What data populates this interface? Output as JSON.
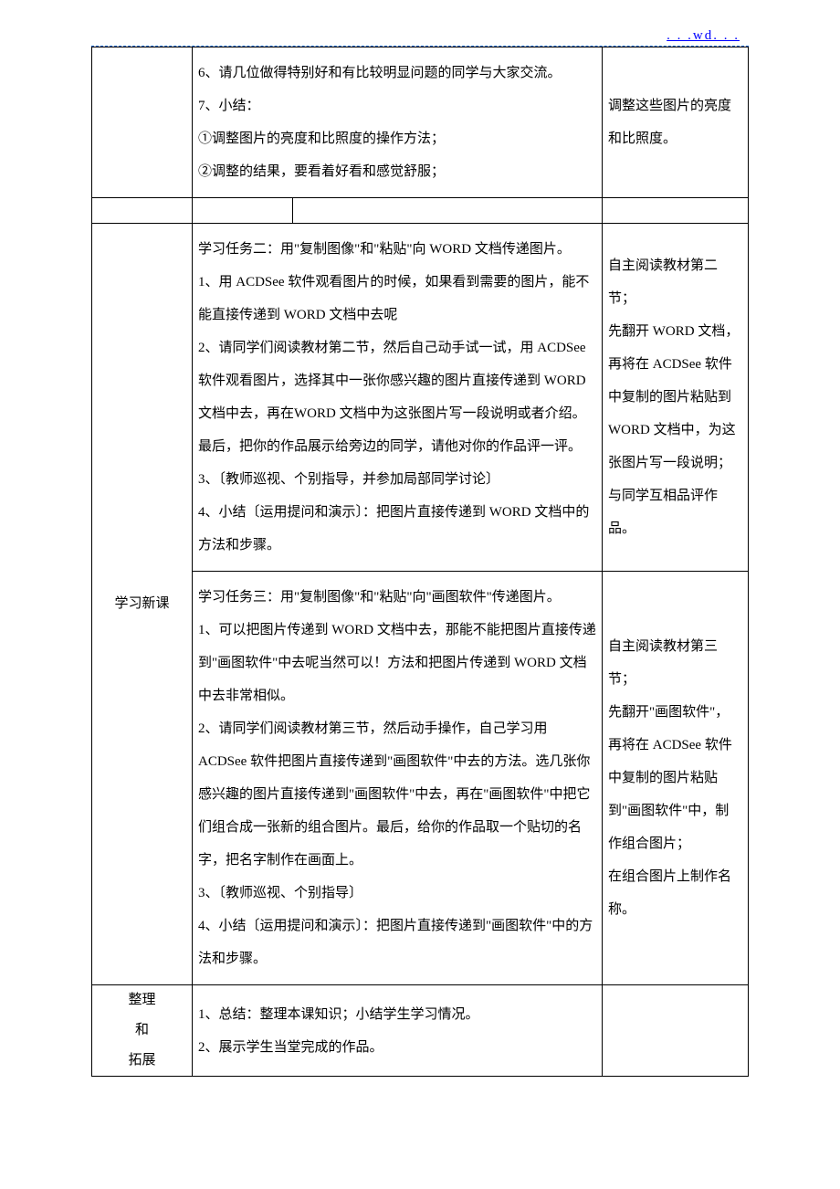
{
  "header": {
    "link_text": ". . .wd. . ."
  },
  "section1": {
    "mid": "6、请几位做得特别好和有比较明显问题的同学与大家交流。\n7、小结：\n①调整图片的亮度和比照度的操作方法；\n②调整的结果，要看着好看和感觉舒服；",
    "right": "调整这些图片的亮度和比照度。"
  },
  "section2": {
    "left": "学习新课",
    "mid_a": "学习任务二：用\"复制图像\"和\"粘贴\"向 WORD 文档传递图片。\n1、用 ACDSee 软件观看图片的时候，如果看到需要的图片，能不能直接传递到 WORD 文档中去呢\n2、请同学们阅读教材第二节，然后自己动手试一试，用 ACDSee 软件观看图片，选择其中一张你感兴趣的图片直接传递到 WORD 文档中去，再在WORD 文档中为这张图片写一段说明或者介绍。最后，把你的作品展示给旁边的同学，请他对你的作品评一评。\n3、〔教师巡视、个别指导，并参加局部同学讨论〕\n4、小结〔运用提问和演示〕：把图片直接传递到 WORD 文档中的方法和步骤。",
    "right_a": "自主阅读教材第二节；\n先翻开 WORD 文档，再将在 ACDSee 软件中复制的图片粘贴到 WORD 文档中，为这张图片写一段说明；\n与同学互相品评作品。",
    "mid_b": "学习任务三：用\"复制图像\"和\"粘贴\"向\"画图软件\"传递图片。\n1、可以把图片传递到 WORD 文档中去，那能不能把图片直接传递到\"画图软件\"中去呢当然可以！方法和把图片传递到 WORD 文档中去非常相似。\n2、请同学们阅读教材第三节，然后动手操作，自己学习用 ACDSee 软件把图片直接传递到\"画图软件\"中去的方法。选几张你感兴趣的图片直接传递到\"画图软件\"中去，再在\"画图软件\"中把它们组合成一张新的组合图片。最后，给你的作品取一个贴切的名字，把名字制作在画面上。\n3、〔教师巡视、个别指导〕\n4、小结〔运用提问和演示〕：把图片直接传递到\"画图软件\"中的方法和步骤。",
    "right_b": "自主阅读教材第三节；\n先翻开\"画图软件\"，再将在 ACDSee 软件中复制的图片粘贴到\"画图软件\"中，制作组合图片；\n在组合图片上制作名称。"
  },
  "section3": {
    "left": "整理\n和\n拓展",
    "mid": "1、总结：整理本课知识；小结学生学习情况。\n2、展示学生当堂完成的作品。",
    "right": ""
  }
}
